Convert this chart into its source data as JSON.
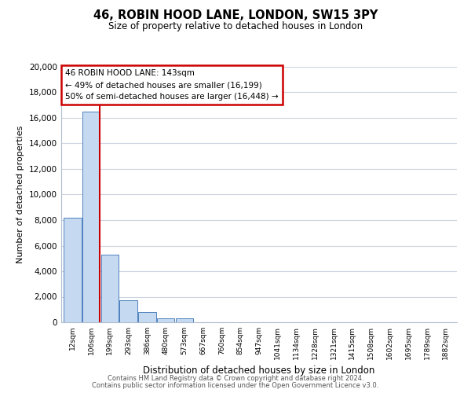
{
  "title": "46, ROBIN HOOD LANE, LONDON, SW15 3PY",
  "subtitle": "Size of property relative to detached houses in London",
  "xlabel": "Distribution of detached houses by size in London",
  "ylabel": "Number of detached properties",
  "bar_labels": [
    "12sqm",
    "106sqm",
    "199sqm",
    "293sqm",
    "386sqm",
    "480sqm",
    "573sqm",
    "667sqm",
    "760sqm",
    "854sqm",
    "947sqm",
    "1041sqm",
    "1134sqm",
    "1228sqm",
    "1321sqm",
    "1415sqm",
    "1508sqm",
    "1602sqm",
    "1695sqm",
    "1789sqm",
    "1882sqm"
  ],
  "bar_values": [
    8200,
    16500,
    5300,
    1750,
    800,
    300,
    300,
    0,
    0,
    0,
    0,
    0,
    0,
    0,
    0,
    0,
    0,
    0,
    0,
    0,
    0
  ],
  "bar_color": "#c5d9f1",
  "bar_edge_color": "#4f81bd",
  "ylim": [
    0,
    20000
  ],
  "yticks": [
    0,
    2000,
    4000,
    6000,
    8000,
    10000,
    12000,
    14000,
    16000,
    18000,
    20000
  ],
  "property_line_x": 1.48,
  "property_line_color": "#cc0000",
  "annotation_title": "46 ROBIN HOOD LANE: 143sqm",
  "annotation_line1": "← 49% of detached houses are smaller (16,199)",
  "annotation_line2": "50% of semi-detached houses are larger (16,448) →",
  "annotation_box_color": "#ffffff",
  "annotation_box_edge": "#cc0000",
  "footer1": "Contains HM Land Registry data © Crown copyright and database right 2024.",
  "footer2": "Contains public sector information licensed under the Open Government Licence v3.0.",
  "background_color": "#ffffff",
  "grid_color": "#ccd4e0"
}
